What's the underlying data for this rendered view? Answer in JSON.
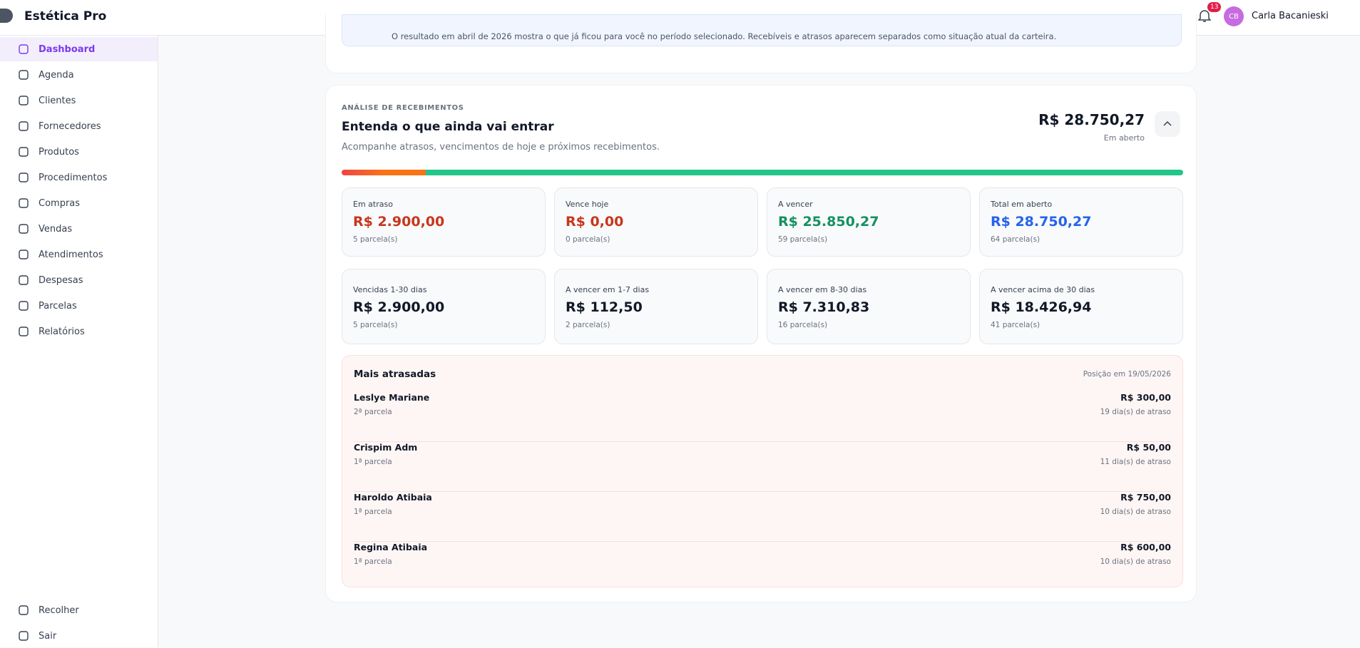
{
  "header": {
    "brand": "Estética Pro",
    "notifications": "13",
    "avatar": "CB",
    "user": "Carla Bacanieski"
  },
  "nav": [
    "Dashboard",
    "Agenda",
    "Clientes",
    "Fornecedores",
    "Produtos",
    "Procedimentos",
    "Compras",
    "Vendas",
    "Atendimentos",
    "Despesas",
    "Parcelas",
    "Relatórios"
  ],
  "nav_bottom": [
    "Recolher",
    "Sair"
  ],
  "banner": {
    "text": "O resultado em abril de 2026 mostra o que já ficou para você no período selecionado. Recebíveis e atrasos aparecem separados como situação atual da carteira."
  },
  "section": {
    "eyebrow": "ANÁLISE DE RECEBIMENTOS",
    "title": "Entenda o que ainda vai entrar",
    "subtitle": "Acompanhe atrasos, vencimentos de hoje e próximos recebimentos.",
    "total": "R$ 28.750,27",
    "total_label": "Em aberto"
  },
  "cards": [
    {
      "label": "Em atraso",
      "value": "R$ 2.900,00",
      "sub": "5 parcela(s)",
      "tone": "red"
    },
    {
      "label": "Vence hoje",
      "value": "R$ 0,00",
      "sub": "0 parcela(s)",
      "tone": "red"
    },
    {
      "label": "A vencer",
      "value": "R$ 25.850,27",
      "sub": "59 parcela(s)",
      "tone": "green"
    },
    {
      "label": "Total em aberto",
      "value": "R$ 28.750,27",
      "sub": "64 parcela(s)",
      "tone": "blue"
    }
  ],
  "aging": [
    {
      "label": "Vencidas 1-30 dias",
      "value": "R$ 2.900,00",
      "sub": "5 parcela(s)"
    },
    {
      "label": "A vencer em 1-7 dias",
      "value": "R$ 112,50",
      "sub": "2 parcela(s)"
    },
    {
      "label": "A vencer em 8-30 dias",
      "value": "R$ 7.310,83",
      "sub": "16 parcela(s)"
    },
    {
      "label": "A vencer acima de 30 dias",
      "value": "R$ 18.426,94",
      "sub": "41 parcela(s)"
    }
  ],
  "overdue": {
    "title": "Mais atrasadas",
    "position": "Posição em 19/05/2026",
    "rows": [
      {
        "name": "Leslye Mariane",
        "installment": "2ª parcela",
        "amount": "R$ 300,00",
        "delay": "19 dia(s) de atraso"
      },
      {
        "name": "Crispim Adm",
        "installment": "1ª parcela",
        "amount": "R$ 50,00",
        "delay": "11 dia(s) de atraso"
      },
      {
        "name": "Haroldo Atibaia",
        "installment": "1ª parcela",
        "amount": "R$ 750,00",
        "delay": "10 dia(s) de atraso"
      },
      {
        "name": "Regina Atibaia",
        "installment": "1ª parcela",
        "amount": "R$ 600,00",
        "delay": "10 dia(s) de atraso"
      }
    ]
  }
}
